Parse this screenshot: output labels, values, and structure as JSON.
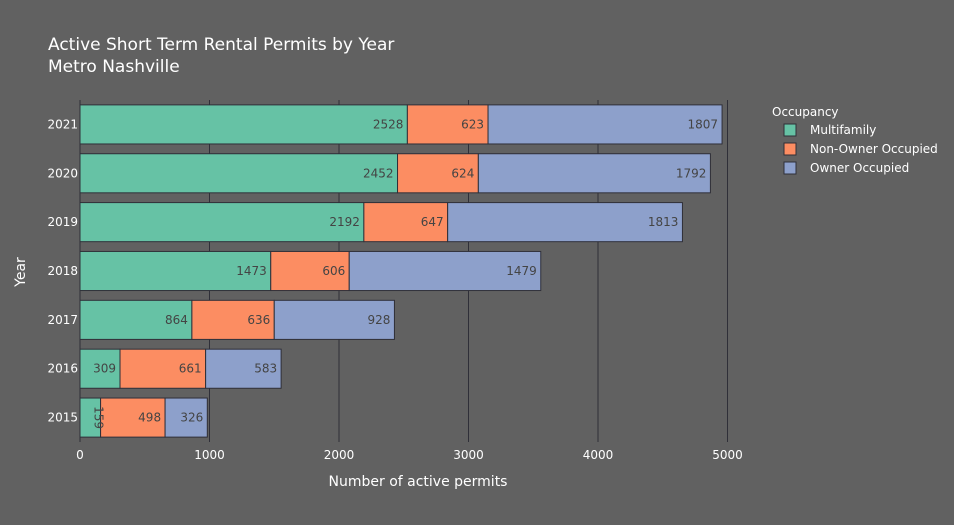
{
  "chart_data": {
    "type": "bar",
    "orientation": "horizontal",
    "stacked": true,
    "title": "Active Short Term Rental Permits by Year",
    "subtitle": "Metro Nashville",
    "xlabel": "Number of active permits",
    "ylabel": "Year",
    "xlim": [
      0,
      5000
    ],
    "xticks": [
      0,
      1000,
      2000,
      3000,
      4000,
      5000
    ],
    "grid": true,
    "legend_position": "right",
    "legend_title": "Occupancy",
    "categories": [
      "2015",
      "2016",
      "2017",
      "2018",
      "2019",
      "2020",
      "2021"
    ],
    "series": [
      {
        "name": "Multifamily",
        "color": "#66c2a5",
        "values": [
          159,
          309,
          864,
          1473,
          2192,
          2452,
          2528
        ]
      },
      {
        "name": "Non-Owner Occupied",
        "color": "#fc8d62",
        "values": [
          498,
          661,
          636,
          606,
          647,
          624,
          623
        ]
      },
      {
        "name": "Owner Occupied",
        "color": "#8da0cb",
        "values": [
          326,
          583,
          928,
          1479,
          1813,
          1792,
          1807
        ]
      }
    ]
  },
  "colors": {
    "background": "#616161",
    "grid": "#2f2f38",
    "bar_outline": "#2f2f38"
  }
}
